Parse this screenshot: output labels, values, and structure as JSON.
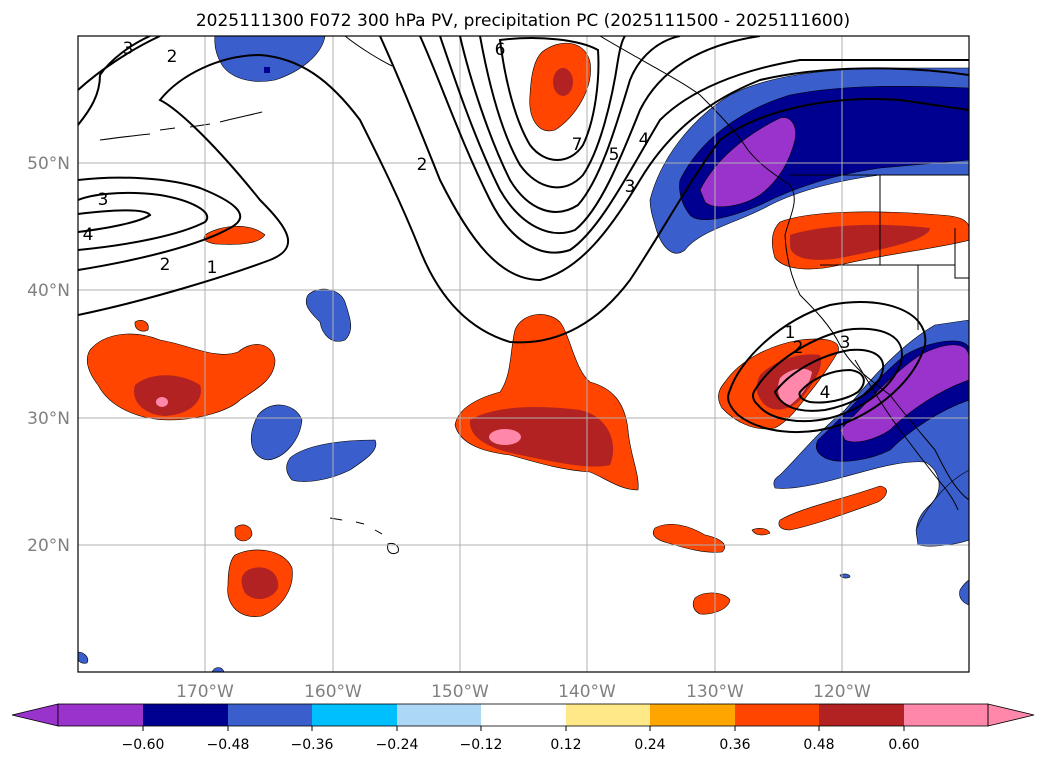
{
  "title": "2025111300 F072 300 hPa PV, precipitation PC (2025111500 - 2025111600)",
  "colors": {
    "frame": "#000000",
    "grid": "#b0b0b0",
    "land": "#ffffff",
    "contour": "#000000",
    "tick_labels": "#808080"
  },
  "map": {
    "lat_labels": [
      "50°N",
      "40°N",
      "30°N",
      "20°N"
    ],
    "lon_labels": [
      "170°W",
      "160°W",
      "150°W",
      "140°W",
      "130°W",
      "120°W"
    ],
    "pv_contour_labels": [
      "3",
      "2",
      "3",
      "4",
      "2",
      "1",
      "2",
      "6",
      "7",
      "5",
      "4",
      "3",
      "1",
      "2",
      "3",
      "4"
    ]
  },
  "colorbar": {
    "tick_labels": [
      "−0.60",
      "−0.48",
      "−0.36",
      "−0.24",
      "−0.12",
      "0.12",
      "0.24",
      "0.36",
      "0.48",
      "0.60"
    ],
    "colors": [
      "#9933cc",
      "#000090",
      "#3a5fcd",
      "#00bfff",
      "#add8f5",
      "#ffffff",
      "#ffe888",
      "#ffa500",
      "#ff4500",
      "#b22222",
      "#ff88aa"
    ]
  },
  "chart_data": {
    "type": "heatmap",
    "title": "2025111300 F072 300 hPa PV, precipitation PC (2025111500 - 2025111600)",
    "field": "precipitation PC (shaded), 300 hPa PV (contours)",
    "x_ticks": [
      "170°W",
      "160°W",
      "150°W",
      "140°W",
      "130°W",
      "120°W"
    ],
    "y_ticks": [
      "50°N",
      "40°N",
      "30°N",
      "20°N"
    ],
    "color_levels": [
      -0.6,
      -0.48,
      -0.36,
      -0.24,
      -0.12,
      0.12,
      0.24,
      0.36,
      0.48,
      0.6
    ],
    "colorbar_extend": "both",
    "pv_contour_values": [
      1,
      2,
      3,
      4,
      5,
      6,
      7
    ],
    "grid": true
  }
}
